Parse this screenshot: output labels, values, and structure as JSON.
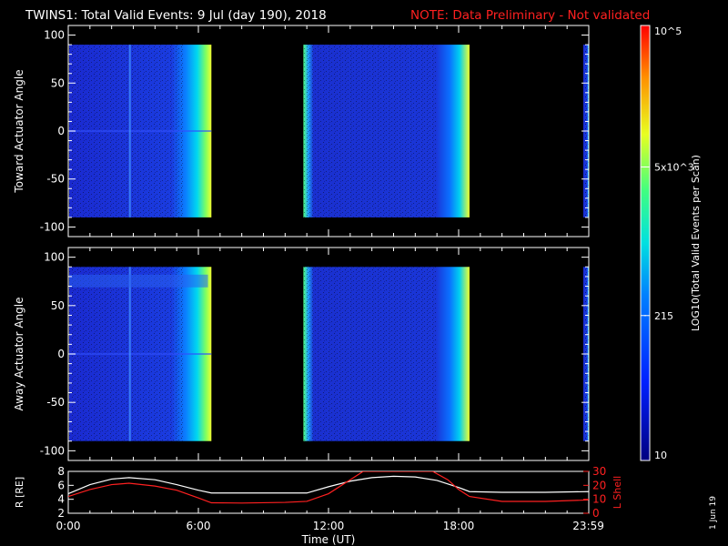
{
  "header": {
    "title": "TWINS1: Total Valid Events:  9 Jul (day 190), 2018",
    "note": "NOTE: Data Preliminary - Not validated"
  },
  "footer": {
    "stamp": "1 Jun 19"
  },
  "colorbar": {
    "label": "LOG10(Total Valid Events per Scan)",
    "ticks": [
      "10",
      "215",
      "5x10^3",
      "10^5"
    ],
    "tick_values": [
      10,
      215,
      5000,
      100000
    ],
    "range": [
      10,
      100000
    ]
  },
  "colors": {
    "data_active": "#1a2fd0",
    "note": "#ff2020",
    "lshell": "#ff2020",
    "radius": "#ffffff"
  },
  "chart_data": [
    {
      "type": "heatmap",
      "title": "",
      "ylabel": "Toward Actuator Angle",
      "ylim": [
        -110,
        110
      ],
      "yticks": [
        100,
        50,
        0,
        -50,
        -100
      ],
      "x_range_hours": [
        0,
        24
      ],
      "angle_extent": [
        -90,
        90
      ],
      "data_intervals_hours": [
        [
          0,
          6.6
        ],
        [
          10.8,
          18.5
        ],
        [
          23.7,
          24
        ]
      ],
      "gaps_hours": [
        [
          6.6,
          10.8
        ],
        [
          18.5,
          23.7
        ]
      ],
      "note": "log counts rise to yellow near end of each interval"
    },
    {
      "type": "heatmap",
      "title": "",
      "ylabel": "Away Actuator Angle",
      "ylim": [
        -110,
        110
      ],
      "yticks": [
        100,
        50,
        0,
        -50,
        -100
      ],
      "x_range_hours": [
        0,
        24
      ],
      "angle_extent": [
        -90,
        90
      ],
      "data_intervals_hours": [
        [
          0,
          6.6
        ],
        [
          10.8,
          18.5
        ],
        [
          23.7,
          24
        ]
      ],
      "gaps_hours": [
        [
          6.6,
          10.8
        ],
        [
          18.5,
          23.7
        ]
      ]
    },
    {
      "type": "line",
      "xlabel": "Time (UT)",
      "xticks": [
        "0:00",
        "6:00",
        "12:00",
        "18:00",
        "23:59"
      ],
      "xtick_hours": [
        0,
        6,
        12,
        18,
        23.983
      ],
      "ylabel": "R [RE]",
      "ylim": [
        2,
        8
      ],
      "yticks": [
        2,
        4,
        6,
        8
      ],
      "y2label": "L Shell",
      "y2lim": [
        0,
        30
      ],
      "y2ticks": [
        0,
        10,
        20,
        30
      ],
      "series": [
        {
          "name": "R",
          "x": [
            0,
            1,
            2,
            2.8,
            4,
            5,
            6,
            6.6,
            8,
            10,
            11,
            12,
            13,
            14,
            15,
            16,
            17,
            18,
            18.5,
            20,
            22,
            23.98
          ],
          "y": [
            4.8,
            6.1,
            6.9,
            7.1,
            6.8,
            6.1,
            5.3,
            4.9,
            4.9,
            4.9,
            4.9,
            5.8,
            6.6,
            7.1,
            7.3,
            7.2,
            6.7,
            5.7,
            5.1,
            5.0,
            5.0,
            5.1
          ]
        },
        {
          "name": "L Shell",
          "x": [
            0,
            1,
            2,
            2.8,
            4,
            5,
            6,
            6.6,
            8,
            10,
            11,
            12,
            13,
            13.6,
            16.8,
            17.5,
            18,
            18.5,
            20,
            22,
            23.98
          ],
          "y": [
            12,
            17,
            20.5,
            21.5,
            19.5,
            16.5,
            11,
            7.5,
            7.3,
            7.8,
            8.5,
            14,
            24,
            30,
            30,
            24,
            17,
            12,
            8.5,
            8.5,
            9.5
          ]
        }
      ]
    }
  ]
}
